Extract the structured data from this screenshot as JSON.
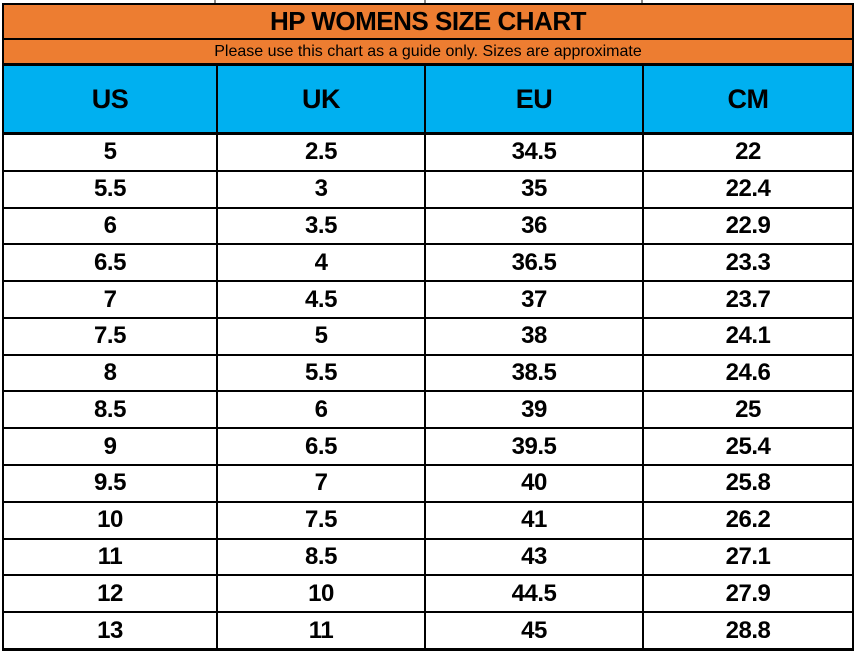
{
  "chart_data": {
    "type": "table",
    "title": "HP WOMENS SIZE CHART",
    "subtitle": "Please use this chart as a guide only. Sizes are approximate",
    "columns": [
      "US",
      "UK",
      "EU",
      "CM"
    ],
    "rows": [
      [
        "5",
        "2.5",
        "34.5",
        "22"
      ],
      [
        "5.5",
        "3",
        "35",
        "22.4"
      ],
      [
        "6",
        "3.5",
        "36",
        "22.9"
      ],
      [
        "6.5",
        "4",
        "36.5",
        "23.3"
      ],
      [
        "7",
        "4.5",
        "37",
        "23.7"
      ],
      [
        "7.5",
        "5",
        "38",
        "24.1"
      ],
      [
        "8",
        "5.5",
        "38.5",
        "24.6"
      ],
      [
        "8.5",
        "6",
        "39",
        "25"
      ],
      [
        "9",
        "6.5",
        "39.5",
        "25.4"
      ],
      [
        "9.5",
        "7",
        "40",
        "25.8"
      ],
      [
        "10",
        "7.5",
        "41",
        "26.2"
      ],
      [
        "11",
        "8.5",
        "43",
        "27.1"
      ],
      [
        "12",
        "10",
        "44.5",
        "27.9"
      ],
      [
        "13",
        "11",
        "45",
        "28.8"
      ]
    ],
    "colors": {
      "header_fill": "#ED7D31",
      "column_header_fill": "#00B0F0",
      "grid": "#000000",
      "text": "#000000",
      "row_fill": "#FFFFFF"
    }
  }
}
